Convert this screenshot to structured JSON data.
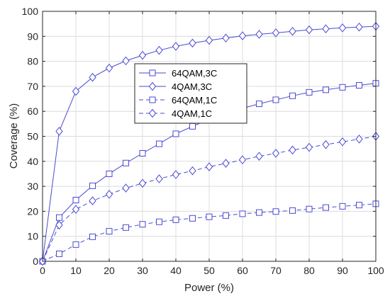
{
  "chart_data": {
    "type": "line",
    "xlabel": "Power (%)",
    "ylabel": "Coverage (%)",
    "xlim": [
      0,
      100
    ],
    "ylim": [
      0,
      100
    ],
    "xticks": [
      0,
      10,
      20,
      30,
      40,
      50,
      60,
      70,
      80,
      90,
      100
    ],
    "yticks": [
      0,
      10,
      20,
      30,
      40,
      50,
      60,
      70,
      80,
      90,
      100
    ],
    "grid": true,
    "legend_position": "upper-middle",
    "x": [
      0,
      5,
      10,
      15,
      20,
      25,
      30,
      35,
      40,
      45,
      50,
      55,
      60,
      65,
      70,
      75,
      80,
      85,
      90,
      95,
      100
    ],
    "series": [
      {
        "name": "64QAM,3C",
        "marker": "square",
        "line_style": "solid",
        "color": "#4a4ad4",
        "values": [
          0,
          17.5,
          24.5,
          30.2,
          35,
          39.3,
          43.2,
          47,
          51,
          54,
          56.8,
          59.2,
          61.2,
          63,
          64.6,
          66.2,
          67.6,
          68.6,
          69.6,
          70.4,
          71.2
        ]
      },
      {
        "name": "4QAM,3C",
        "marker": "diamond",
        "line_style": "solid",
        "color": "#4a4ad4",
        "values": [
          0,
          52,
          68,
          73.6,
          77.3,
          80.2,
          82.4,
          84.4,
          86,
          87.3,
          88.4,
          89.3,
          90.2,
          90.8,
          91.4,
          92,
          92.6,
          93,
          93.4,
          93.7,
          94
        ]
      },
      {
        "name": "64QAM,1C",
        "marker": "square",
        "line_style": "dashed",
        "color": "#4a4ad4",
        "values": [
          0,
          3,
          6.7,
          9.8,
          12,
          13.5,
          14.8,
          15.8,
          16.6,
          17.2,
          17.8,
          18.3,
          19,
          19.5,
          19.9,
          20.3,
          20.9,
          21.5,
          22,
          22.5,
          23
        ]
      },
      {
        "name": "4QAM,1C",
        "marker": "diamond",
        "line_style": "dashed",
        "color": "#4a4ad4",
        "values": [
          0,
          14.5,
          20.8,
          24.2,
          26.8,
          29.3,
          31.2,
          33,
          34.7,
          36.2,
          37.8,
          39.2,
          40.6,
          42,
          43.2,
          44.5,
          45.6,
          46.7,
          47.8,
          48.9,
          50
        ]
      }
    ]
  }
}
